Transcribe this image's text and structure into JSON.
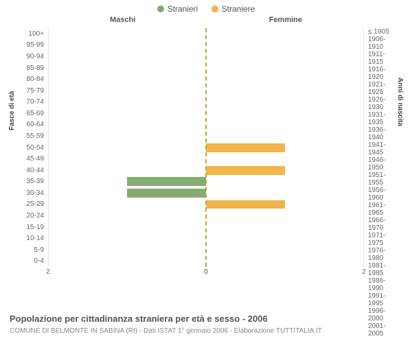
{
  "chart": {
    "type": "population-pyramid",
    "legend": [
      {
        "label": "Stranieri",
        "color": "#86ab71"
      },
      {
        "label": "Straniere",
        "color": "#f2b54b"
      }
    ],
    "side_titles": {
      "left": "Maschi",
      "right": "Femmine"
    },
    "axis_titles": {
      "left": "Fasce di età",
      "right": "Anni di nascita"
    },
    "center_line_color": "#b8a632",
    "grid_color": "#e6e6e6",
    "background_color": "#ffffff",
    "age_bands": [
      "100+",
      "95-99",
      "90-94",
      "85-89",
      "80-84",
      "75-79",
      "70-74",
      "65-69",
      "60-64",
      "55-59",
      "50-54",
      "45-49",
      "40-44",
      "35-39",
      "30-34",
      "25-29",
      "20-24",
      "15-19",
      "10-14",
      "5-9",
      "0-4"
    ],
    "birth_years": [
      "≤ 1905",
      "1906-1910",
      "1911-1915",
      "1916-1920",
      "1921-1925",
      "1926-1930",
      "1931-1935",
      "1936-1940",
      "1941-1945",
      "1946-1950",
      "1951-1955",
      "1956-1960",
      "1961-1965",
      "1966-1970",
      "1971-1975",
      "1976-1980",
      "1981-1985",
      "1986-1990",
      "1991-1995",
      "1996-2000",
      "2001-2005"
    ],
    "x_ticks": {
      "left": [
        "2",
        "0"
      ],
      "right": [
        "0",
        "2"
      ]
    },
    "x_max": 2,
    "male_values": [
      0,
      0,
      0,
      0,
      0,
      0,
      0,
      0,
      0,
      0,
      0,
      0,
      0,
      1,
      1,
      0,
      0,
      0,
      0,
      0,
      0
    ],
    "female_values": [
      0,
      0,
      0,
      0,
      0,
      0,
      0,
      0,
      0,
      0,
      1,
      0,
      1,
      0,
      0,
      1,
      0,
      0,
      0,
      0,
      0
    ],
    "male_color": "#86ab71",
    "female_color": "#f2b54b"
  },
  "caption": "Popolazione per cittadinanza straniera per età e sesso - 2006",
  "subcaption": "COMUNE DI BELMONTE IN SABINA (RI) - Dati ISTAT 1° gennaio 2006 - Elaborazione TUTTITALIA.IT"
}
